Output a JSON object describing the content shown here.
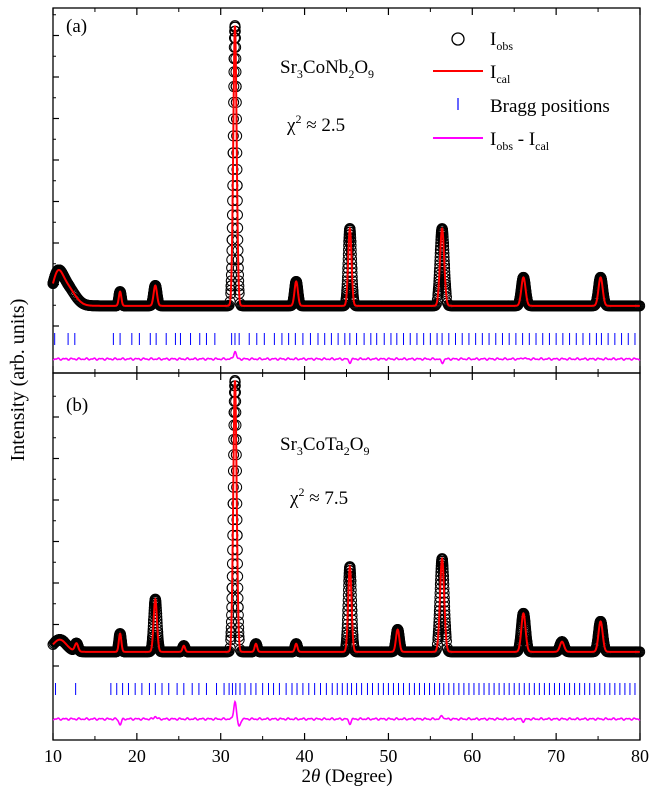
{
  "figure": {
    "ylabel": "Intensity (arb. units)",
    "xlabel_prefix": "2",
    "xlabel_theta": "θ",
    "xlabel_suffix": " (Degree)"
  },
  "legend": {
    "iobs": {
      "base": "I",
      "sub": "obs"
    },
    "ical": {
      "base": "I",
      "sub": "cal"
    },
    "bragg": "Bragg positions",
    "diff": {
      "a": "I",
      "a_sub": "obs",
      "mid": " - ",
      "b": "I",
      "b_sub": "cal"
    },
    "colors": {
      "iobs": "#000000",
      "ical": "#ff0000",
      "bragg": "#0000ff",
      "diff": "#ff00ff"
    }
  },
  "chart_data": [
    {
      "type": "scatter",
      "panel_label": "(a)",
      "compound": {
        "p1": "Sr",
        "s1": "3",
        "p2": "CoNb",
        "s2": "2",
        "p3": "O",
        "s3": "9"
      },
      "chi": {
        "sym": "χ",
        "sup": "2",
        "text": " ≈ 2.5"
      },
      "xlim": [
        10,
        80
      ],
      "x_ticks": [
        10,
        20,
        30,
        40,
        50,
        60,
        70,
        80
      ],
      "background": 0.3,
      "peaks": [
        {
          "x": 10.5,
          "y": 0.55,
          "w": 0.6
        },
        {
          "x": 11.5,
          "y": 0.5,
          "w": 1.0
        },
        {
          "x": 18.0,
          "y": 0.35,
          "w": 0.15
        },
        {
          "x": 22.2,
          "y": 0.5,
          "w": 0.2
        },
        {
          "x": 31.7,
          "y": 6.9,
          "w": 0.2
        },
        {
          "x": 39.0,
          "y": 0.6,
          "w": 0.2
        },
        {
          "x": 45.4,
          "y": 1.9,
          "w": 0.2
        },
        {
          "x": 56.4,
          "y": 1.9,
          "w": 0.25
        },
        {
          "x": 66.1,
          "y": 0.7,
          "w": 0.25
        },
        {
          "x": 75.3,
          "y": 0.7,
          "w": 0.25
        }
      ],
      "bragg_positions": [
        10.2,
        11.8,
        12.6,
        17.2,
        18.0,
        19.4,
        20.3,
        21.6,
        22.3,
        23.5,
        24.6,
        25.2,
        26.4,
        27.5,
        28.3,
        29.3,
        31.3,
        31.7,
        32.2,
        33.4,
        34.3,
        35.2,
        36.4,
        37.3,
        38.1,
        38.9,
        39.8,
        40.7,
        41.6,
        42.4,
        43.2,
        44.0,
        44.8,
        45.4,
        46.2,
        47.1,
        47.9,
        48.6,
        49.5,
        50.3,
        51.0,
        51.8,
        52.6,
        53.4,
        54.2,
        55.0,
        55.8,
        56.4,
        57.2,
        58.0,
        58.8,
        59.6,
        60.4,
        61.2,
        62.0,
        62.8,
        63.6,
        64.4,
        65.2,
        66.0,
        66.8,
        67.6,
        68.4,
        69.2,
        70.0,
        70.8,
        71.6,
        72.4,
        73.2,
        74.0,
        74.8,
        75.4,
        76.2,
        77.0,
        77.8,
        78.6,
        79.4
      ],
      "diff_features": [
        {
          "x": 31.7,
          "a": 0.35
        },
        {
          "x": 45.4,
          "a": -0.15
        },
        {
          "x": 56.4,
          "a": -0.18
        },
        {
          "x": 66.1,
          "a": 0.06
        }
      ]
    },
    {
      "type": "scatter",
      "panel_label": "(b)",
      "compound": {
        "p1": "Sr",
        "s1": "3",
        "p2": "CoTa",
        "s2": "2",
        "p3": "O",
        "s3": "9"
      },
      "chi": {
        "sym": "χ",
        "sup": "2",
        "text": " ≈ 7.5"
      },
      "xlim": [
        10,
        80
      ],
      "x_ticks": [
        10,
        20,
        30,
        40,
        50,
        60,
        70,
        80
      ],
      "background": 0.35,
      "peaks": [
        {
          "x": 10.8,
          "y": 0.3,
          "w": 0.8
        },
        {
          "x": 12.8,
          "y": 0.2,
          "w": 0.2
        },
        {
          "x": 18.0,
          "y": 0.45,
          "w": 0.15
        },
        {
          "x": 22.2,
          "y": 1.3,
          "w": 0.2
        },
        {
          "x": 25.6,
          "y": 0.15,
          "w": 0.15
        },
        {
          "x": 31.7,
          "y": 6.7,
          "w": 0.2
        },
        {
          "x": 34.2,
          "y": 0.2,
          "w": 0.15
        },
        {
          "x": 39.0,
          "y": 0.2,
          "w": 0.15
        },
        {
          "x": 45.4,
          "y": 2.1,
          "w": 0.2
        },
        {
          "x": 51.1,
          "y": 0.55,
          "w": 0.2
        },
        {
          "x": 56.4,
          "y": 2.3,
          "w": 0.25
        },
        {
          "x": 66.1,
          "y": 0.95,
          "w": 0.25
        },
        {
          "x": 70.7,
          "y": 0.25,
          "w": 0.25
        },
        {
          "x": 75.3,
          "y": 0.75,
          "w": 0.25
        }
      ],
      "bragg_positions": [
        10.3,
        12.7,
        16.9,
        17.6,
        18.3,
        19.0,
        19.8,
        20.6,
        21.5,
        22.2,
        23.0,
        23.8,
        24.8,
        25.6,
        26.6,
        27.4,
        28.3,
        29.5,
        30.4,
        31.0,
        31.4,
        31.8,
        32.3,
        32.9,
        33.6,
        34.2,
        35.0,
        35.7,
        36.3,
        37.0,
        37.8,
        38.5,
        39.1,
        39.8,
        40.5,
        41.2,
        41.9,
        42.6,
        43.3,
        43.9,
        44.5,
        45.1,
        45.6,
        46.2,
        46.8,
        47.5,
        48.1,
        48.8,
        49.4,
        50.0,
        50.6,
        51.2,
        51.8,
        52.5,
        53.1,
        53.7,
        54.3,
        54.9,
        55.5,
        56.1,
        56.6,
        57.2,
        57.8,
        58.4,
        59.0,
        59.6,
        60.2,
        60.8,
        61.4,
        62.0,
        62.6,
        63.2,
        63.8,
        64.4,
        65.0,
        65.6,
        66.2,
        66.8,
        67.4,
        68.0,
        68.6,
        69.2,
        69.8,
        70.4,
        71.0,
        71.6,
        72.2,
        72.8,
        73.4,
        74.0,
        74.6,
        75.2,
        75.8,
        76.4,
        77.0,
        77.6,
        78.2,
        78.8,
        79.4
      ],
      "diff_features": [
        {
          "x": 18.0,
          "a": -0.25
        },
        {
          "x": 22.2,
          "a": 0.12
        },
        {
          "x": 31.7,
          "a": 0.8
        },
        {
          "x": 32.2,
          "a": -0.35
        },
        {
          "x": 45.4,
          "a": -0.2
        },
        {
          "x": 56.4,
          "a": 0.15
        },
        {
          "x": 66.1,
          "a": -0.1
        }
      ]
    }
  ]
}
